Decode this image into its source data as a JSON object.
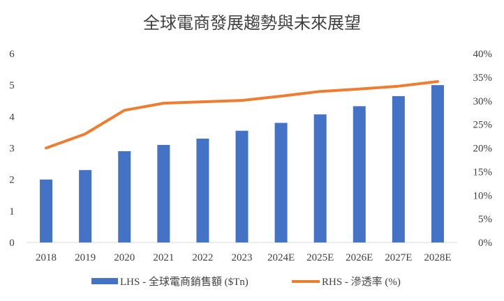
{
  "chart_data": {
    "type": "bar",
    "title": "全球電商發展趨勢與未來展望",
    "categories": [
      "2018",
      "2019",
      "2020",
      "2021",
      "2022",
      "2023",
      "2024E",
      "2025E",
      "2026E",
      "2027E",
      "2028E"
    ],
    "series": [
      {
        "name": "LHS - 全球電商銷售額 ($Tn)",
        "type": "bar",
        "axis": "left",
        "color": "#4472C4",
        "values": [
          2.0,
          2.3,
          2.9,
          3.1,
          3.3,
          3.55,
          3.8,
          4.07,
          4.33,
          4.65,
          5.0
        ]
      },
      {
        "name": "RHS - 滲透率 (%)",
        "type": "line",
        "axis": "right",
        "color": "#ED7D31",
        "values": [
          0.2,
          0.23,
          0.28,
          0.295,
          0.298,
          0.301,
          0.31,
          0.32,
          0.325,
          0.331,
          0.341
        ]
      }
    ],
    "y_left": {
      "ylim": [
        0,
        6
      ],
      "ticks": [
        "0",
        "1",
        "2",
        "3",
        "4",
        "5",
        "6"
      ]
    },
    "y_right": {
      "ylim": [
        0,
        0.4
      ],
      "ticks": [
        "0%",
        "5%",
        "10%",
        "15%",
        "20%",
        "25%",
        "30%",
        "35%",
        "40%"
      ]
    },
    "grid": false,
    "legend": "bottom"
  }
}
